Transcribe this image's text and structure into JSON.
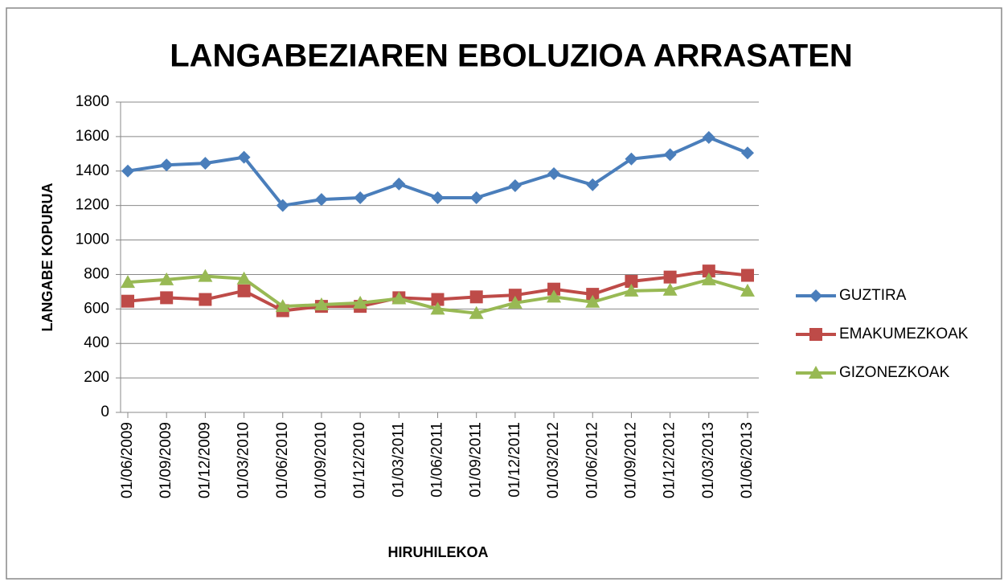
{
  "chart_data": {
    "type": "line",
    "title": "LANGABEZIAREN EBOLUZIOA ARRASATEN",
    "x_label": "HIRUHILEKOA",
    "y_label": "LANGABE KOPURUA",
    "categories": [
      "01/06/2009",
      "01/09/2009",
      "01/12/2009",
      "01/03/2010",
      "01/06/2010",
      "01/09/2010",
      "01/12/2010",
      "01/03/2011",
      "01/06/2011",
      "01/09/2011",
      "01/12/2011",
      "01/03/2012",
      "01/06/2012",
      "01/09/2012",
      "01/12/2012",
      "01/03/2013",
      "01/06/2013"
    ],
    "series": [
      {
        "name": "GUZTIRA",
        "color": "#4a7ebb",
        "marker": "diamond",
        "values": [
          1400,
          1435,
          1445,
          1480,
          1200,
          1235,
          1245,
          1325,
          1245,
          1245,
          1315,
          1385,
          1320,
          1470,
          1495,
          1595,
          1505
        ]
      },
      {
        "name": "EMAKUMEZKOAK",
        "color": "#be4b48",
        "marker": "square",
        "values": [
          645,
          665,
          655,
          705,
          590,
          615,
          615,
          665,
          655,
          670,
          680,
          715,
          685,
          760,
          785,
          820,
          795
        ]
      },
      {
        "name": "GIZONEZKOAK",
        "color": "#98b954",
        "marker": "triangle",
        "values": [
          755,
          770,
          790,
          775,
          615,
          625,
          635,
          660,
          600,
          575,
          635,
          670,
          640,
          705,
          710,
          770,
          705
        ]
      }
    ],
    "ylim": [
      0,
      1800
    ],
    "yticks": [
      0,
      200,
      400,
      600,
      800,
      1000,
      1200,
      1400,
      1600,
      1800
    ],
    "grid": true,
    "legend": "right"
  }
}
